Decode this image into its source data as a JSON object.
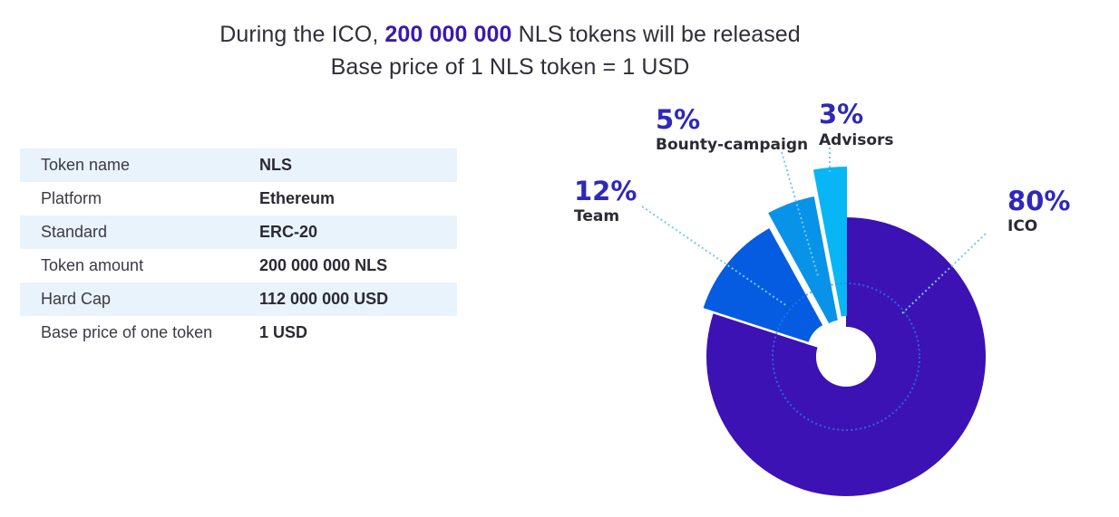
{
  "headline": {
    "line1_prefix": "During the ICO,",
    "line1_amount": "200 000 000",
    "line1_suffix": "NLS tokens will be released",
    "line2": "Base price of 1 NLS token = 1 USD"
  },
  "token_table": {
    "rows": [
      {
        "key": "Token name",
        "value": "NLS"
      },
      {
        "key": "Platform",
        "value": "Ethereum"
      },
      {
        "key": "Standard",
        "value": "ERC-20"
      },
      {
        "key": "Token amount",
        "value": "200 000 000 NLS"
      },
      {
        "key": "Hard Cap",
        "value": "112 000 000 USD"
      },
      {
        "key": "Base price of one token",
        "value": "1 USD"
      }
    ]
  },
  "colors": {
    "accent": "#3a18b5",
    "table_shade": "#e9f3fb",
    "ico": "#3c12b4",
    "team": "#065ce0",
    "bounty": "#0893e9",
    "advisors": "#08b6f6",
    "leader": "#74c9f0"
  },
  "chart_data": {
    "type": "pie",
    "categories": [
      "ICO",
      "Team",
      "Bounty-campaign",
      "Advisors"
    ],
    "values": [
      80,
      12,
      5,
      3
    ],
    "labels": [
      "80%",
      "12%",
      "5%",
      "3%"
    ]
  }
}
